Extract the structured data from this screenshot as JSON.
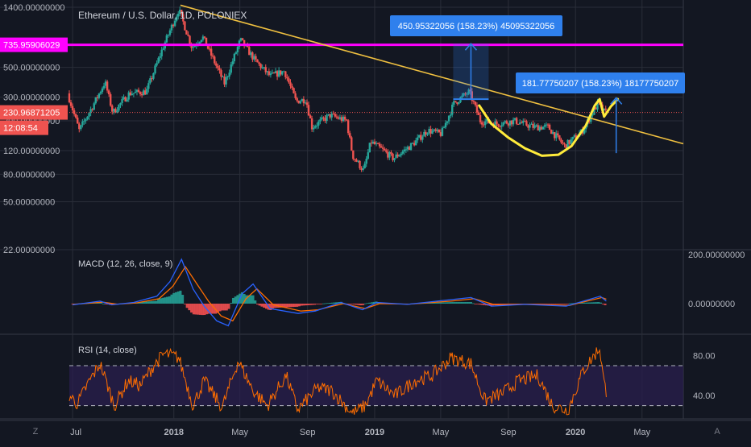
{
  "header": {
    "title": "Ethereum / U.S. Dollar, 1D, POLONIEX"
  },
  "colors": {
    "background": "#131722",
    "grid": "#2a2e39",
    "axis_text": "#b2b5be",
    "up_candle": "#26a69a",
    "down_candle": "#ef5350",
    "trendline": "#f0c040",
    "magenta_level": "#ff00ff",
    "cup_curve": "#ffeb3b",
    "measure_blue": "#2f80ed",
    "macd_line": "#2962ff",
    "signal_line": "#ff6d00",
    "rsi_line": "#ff6d00",
    "rsi_band": "#2a1f4d"
  },
  "chart_data": [
    {
      "type": "candlestick",
      "title": "Ethereum / U.S. Dollar, 1D, POLONIEX",
      "scale": "log",
      "ylim": [
        22,
        1500
      ],
      "x_tick_labels": [
        "Jul",
        "2018",
        "May",
        "Sep",
        "2019",
        "May",
        "Sep",
        "2020",
        "May"
      ],
      "y_tick_labels": [
        {
          "value": 1400,
          "label": "1400.00000000"
        },
        {
          "value": 500,
          "label": "500.00000000"
        },
        {
          "value": 300,
          "label": "300.00000000"
        },
        {
          "value": 200,
          "label": "200.00000000"
        },
        {
          "value": 120,
          "label": "120.00000000"
        },
        {
          "value": 80,
          "label": "80.00000000"
        },
        {
          "value": 50,
          "label": "50.00000000"
        },
        {
          "value": 22,
          "label": "22.00000000"
        }
      ],
      "price_path": [
        [
          "2017-06-25",
          320
        ],
        [
          "2017-07-16",
          170
        ],
        [
          "2017-08-10",
          260
        ],
        [
          "2017-09-01",
          390
        ],
        [
          "2017-09-15",
          230
        ],
        [
          "2017-10-15",
          320
        ],
        [
          "2017-11-15",
          330
        ],
        [
          "2017-12-15",
          700
        ],
        [
          "2018-01-13",
          1350
        ],
        [
          "2018-02-06",
          700
        ],
        [
          "2018-02-25",
          850
        ],
        [
          "2018-04-06",
          380
        ],
        [
          "2018-05-05",
          800
        ],
        [
          "2018-06-01",
          560
        ],
        [
          "2018-06-28",
          430
        ],
        [
          "2018-07-24",
          470
        ],
        [
          "2018-08-14",
          280
        ],
        [
          "2018-09-01",
          290
        ],
        [
          "2018-09-12",
          180
        ],
        [
          "2018-10-15",
          220
        ],
        [
          "2018-11-14",
          200
        ],
        [
          "2018-11-25",
          110
        ],
        [
          "2018-12-15",
          85
        ],
        [
          "2018-12-28",
          140
        ],
        [
          "2019-01-20",
          120
        ],
        [
          "2019-02-07",
          105
        ],
        [
          "2019-03-15",
          135
        ],
        [
          "2019-04-10",
          170
        ],
        [
          "2019-05-05",
          160
        ],
        [
          "2019-05-28",
          270
        ],
        [
          "2019-06-25",
          330
        ],
        [
          "2019-07-15",
          200
        ],
        [
          "2019-08-15",
          190
        ],
        [
          "2019-09-15",
          200
        ],
        [
          "2019-10-20",
          180
        ],
        [
          "2019-11-15",
          180
        ],
        [
          "2019-12-15",
          130
        ],
        [
          "2020-01-15",
          165
        ],
        [
          "2020-02-14",
          270
        ],
        [
          "2020-02-26",
          231
        ]
      ],
      "price_levels": [
        {
          "value": 735.95906029,
          "label": "735.95906029",
          "color": "#ff00ff"
        },
        {
          "value": 230.96871205,
          "label": "230.96871205",
          "color": "#ef5350",
          "countdown": "12:08:54"
        }
      ],
      "annotations": [
        {
          "type": "measure",
          "from": [
            "2019-06-25",
            290
          ],
          "to": [
            "2019-06-25",
            750
          ],
          "label": "450.95322056 (158.23%) 45095322056"
        },
        {
          "type": "measure",
          "from": [
            "2020-03-15",
            115
          ],
          "to": [
            "2020-03-15",
            297
          ],
          "label": "181.77750207 (158.23%) 18177750207"
        }
      ]
    },
    {
      "type": "line",
      "title": "MACD (12, 26, close, 9)",
      "y_tick_labels": [
        {
          "value": 200,
          "label": "200.00000000"
        },
        {
          "value": 0,
          "label": "0.00000000"
        }
      ],
      "series": [
        {
          "name": "MACD",
          "points": [
            [
              "2017-07-01",
              -5
            ],
            [
              "2017-08-20",
              10
            ],
            [
              "2017-09-10",
              -5
            ],
            [
              "2017-10-20",
              5
            ],
            [
              "2017-12-01",
              30
            ],
            [
              "2017-12-25",
              90
            ],
            [
              "2018-01-15",
              180
            ],
            [
              "2018-02-05",
              60
            ],
            [
              "2018-02-25",
              -10
            ],
            [
              "2018-03-20",
              -70
            ],
            [
              "2018-04-10",
              -90
            ],
            [
              "2018-05-05",
              40
            ],
            [
              "2018-05-25",
              80
            ],
            [
              "2018-06-25",
              -20
            ],
            [
              "2018-08-15",
              -40
            ],
            [
              "2018-09-15",
              -30
            ],
            [
              "2018-11-01",
              5
            ],
            [
              "2018-12-10",
              -25
            ],
            [
              "2019-01-05",
              5
            ],
            [
              "2019-03-01",
              -3
            ],
            [
              "2019-05-15",
              15
            ],
            [
              "2019-06-25",
              25
            ],
            [
              "2019-08-01",
              -10
            ],
            [
              "2019-10-01",
              -3
            ],
            [
              "2019-12-15",
              -10
            ],
            [
              "2020-02-15",
              30
            ],
            [
              "2020-02-26",
              10
            ]
          ]
        },
        {
          "name": "Signal",
          "points": [
            [
              "2017-07-01",
              -3
            ],
            [
              "2017-08-25",
              6
            ],
            [
              "2017-09-20",
              -2
            ],
            [
              "2017-10-25",
              3
            ],
            [
              "2017-12-05",
              20
            ],
            [
              "2017-12-30",
              70
            ],
            [
              "2018-01-22",
              150
            ],
            [
              "2018-02-12",
              80
            ],
            [
              "2018-03-05",
              10
            ],
            [
              "2018-03-28",
              -50
            ],
            [
              "2018-04-18",
              -70
            ],
            [
              "2018-05-12",
              20
            ],
            [
              "2018-06-01",
              60
            ],
            [
              "2018-07-01",
              -5
            ],
            [
              "2018-08-20",
              -30
            ],
            [
              "2018-09-20",
              -25
            ],
            [
              "2018-11-05",
              0
            ],
            [
              "2018-12-15",
              -20
            ],
            [
              "2019-01-10",
              0
            ],
            [
              "2019-03-05",
              -2
            ],
            [
              "2019-05-20",
              10
            ],
            [
              "2019-07-01",
              20
            ],
            [
              "2019-08-08",
              -5
            ],
            [
              "2019-10-05",
              -2
            ],
            [
              "2019-12-20",
              -8
            ],
            [
              "2020-02-18",
              25
            ],
            [
              "2020-02-26",
              18
            ]
          ]
        }
      ]
    },
    {
      "type": "line",
      "title": "RSI (14, close)",
      "ylim": [
        20,
        95
      ],
      "y_tick_labels": [
        {
          "value": 80,
          "label": "80.00"
        },
        {
          "value": 40,
          "label": "40.00"
        }
      ],
      "band": [
        30,
        70
      ],
      "series": [
        {
          "name": "RSI",
          "points": [
            [
              "2017-06-25",
              40
            ],
            [
              "2017-07-10",
              32
            ],
            [
              "2017-08-01",
              55
            ],
            [
              "2017-08-20",
              72
            ],
            [
              "2017-09-15",
              30
            ],
            [
              "2017-10-10",
              55
            ],
            [
              "2017-11-01",
              50
            ],
            [
              "2017-11-25",
              70
            ],
            [
              "2017-12-15",
              82
            ],
            [
              "2018-01-10",
              78
            ],
            [
              "2018-02-05",
              30
            ],
            [
              "2018-02-25",
              55
            ],
            [
              "2018-03-30",
              28
            ],
            [
              "2018-04-28",
              75
            ],
            [
              "2018-05-25",
              45
            ],
            [
              "2018-06-20",
              30
            ],
            [
              "2018-07-24",
              60
            ],
            [
              "2018-08-14",
              26
            ],
            [
              "2018-09-20",
              48
            ],
            [
              "2018-10-15",
              45
            ],
            [
              "2018-11-22",
              22
            ],
            [
              "2018-12-15",
              30
            ],
            [
              "2019-01-05",
              55
            ],
            [
              "2019-02-07",
              40
            ],
            [
              "2019-03-15",
              55
            ],
            [
              "2019-04-15",
              60
            ],
            [
              "2019-05-20",
              78
            ],
            [
              "2019-06-25",
              72
            ],
            [
              "2019-07-20",
              35
            ],
            [
              "2019-08-20",
              42
            ],
            [
              "2019-09-20",
              55
            ],
            [
              "2019-10-25",
              60
            ],
            [
              "2019-11-20",
              30
            ],
            [
              "2019-12-18",
              25
            ],
            [
              "2020-01-15",
              65
            ],
            [
              "2020-02-14",
              88
            ],
            [
              "2020-02-22",
              52
            ],
            [
              "2020-02-26",
              45
            ]
          ]
        }
      ]
    }
  ]
}
